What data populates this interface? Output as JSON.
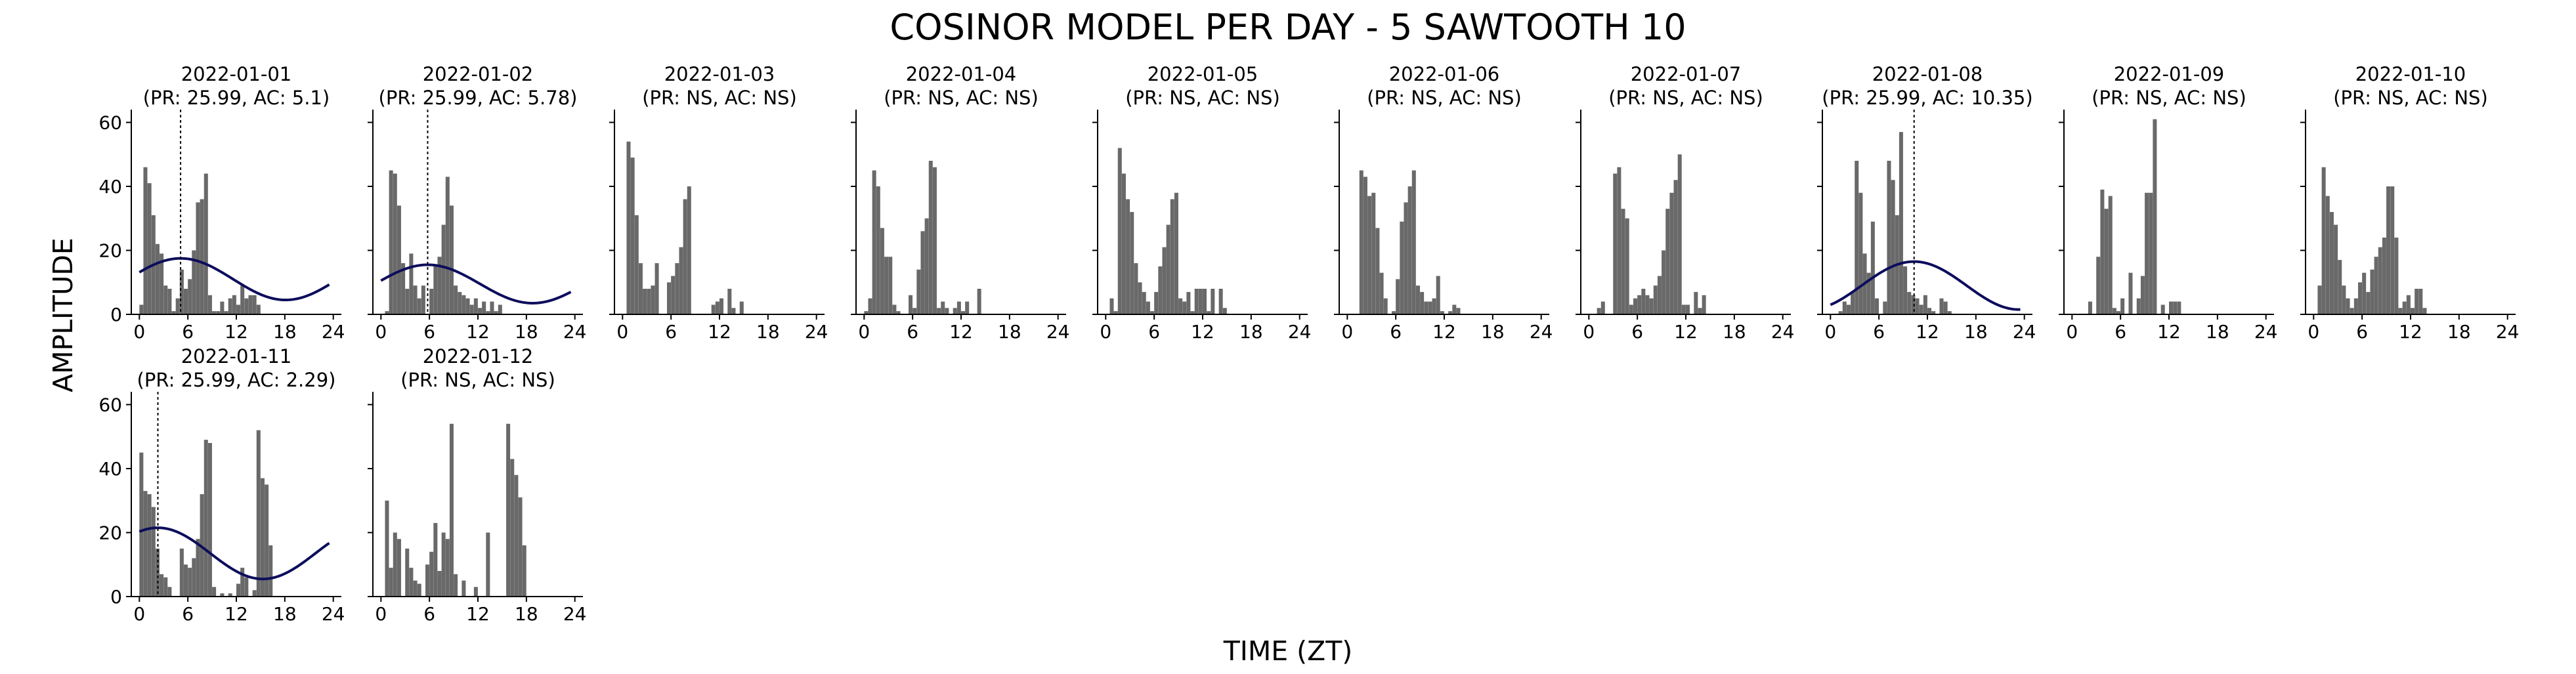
{
  "figure": {
    "title": "COSINOR MODEL PER DAY - 5 SAWTOOTH 10",
    "xlabel": "TIME (ZT)",
    "ylabel": "AMPLITUDE"
  },
  "style": {
    "bar_color": "#696969",
    "fit_color": "#0d0d5c",
    "acrophase_line_color": "#000000",
    "axis_color": "#000000"
  },
  "chart_data": {
    "type": "bar",
    "note_layout": "small multiples, 10 per row",
    "x_bin_hours": 0.5,
    "xlim": [
      -1,
      25
    ],
    "ylim": [
      0,
      64
    ],
    "xticks": [
      0,
      6,
      12,
      18,
      24
    ],
    "yticks": [
      0,
      20,
      40,
      60
    ],
    "grid": false,
    "days": [
      {
        "date": "2022-01-01",
        "subtitle": "(PR: 25.99, AC: 5.1)",
        "values": [
          3,
          46,
          41,
          31,
          22,
          19,
          9,
          8,
          1,
          5,
          14,
          8,
          11,
          20,
          35,
          36,
          44,
          6,
          1,
          1,
          4,
          1,
          5,
          6,
          3,
          9,
          5,
          6,
          6,
          3
        ],
        "fit": {
          "mesor": 11,
          "amplitude": 6.5,
          "acrophase": 5.1,
          "period": 25.99
        }
      },
      {
        "date": "2022-01-02",
        "subtitle": "(PR: 25.99, AC: 5.78)",
        "values": [
          0,
          1,
          45,
          44,
          34,
          16,
          8,
          19,
          9,
          5,
          9,
          0,
          8,
          15,
          18,
          28,
          43,
          34,
          9,
          7,
          6,
          5,
          3,
          5,
          2,
          4,
          1,
          4,
          1,
          3
        ],
        "fit": {
          "mesor": 9.5,
          "amplitude": 6,
          "acrophase": 5.78,
          "period": 25.99
        }
      },
      {
        "date": "2022-01-03",
        "subtitle": "(PR: NS, AC: NS)",
        "values": [
          0,
          54,
          49,
          31,
          16,
          8,
          8,
          9,
          16,
          0,
          0,
          10,
          12,
          16,
          21,
          36,
          40,
          0,
          0,
          0,
          0,
          0,
          3,
          4,
          5,
          0,
          8,
          2,
          0,
          4
        ],
        "fit": null
      },
      {
        "date": "2022-01-04",
        "subtitle": "(PR: NS, AC: NS)",
        "values": [
          1,
          5,
          45,
          40,
          27,
          18,
          18,
          3,
          1,
          0,
          0,
          6,
          2,
          14,
          26,
          30,
          48,
          46,
          2,
          4,
          2,
          0,
          2,
          4,
          1,
          4,
          0,
          0,
          8,
          0
        ],
        "fit": null
      },
      {
        "date": "2022-01-05",
        "subtitle": "(PR: NS, AC: NS)",
        "values": [
          0,
          5,
          1,
          52,
          44,
          36,
          32,
          16,
          10,
          7,
          4,
          1,
          7,
          15,
          21,
          28,
          36,
          38,
          5,
          4,
          7,
          1,
          8,
          8,
          8,
          1,
          8,
          0,
          8,
          2
        ],
        "fit": null
      },
      {
        "date": "2022-01-06",
        "subtitle": "(PR: NS, AC: NS)",
        "values": [
          0,
          0,
          0,
          45,
          43,
          37,
          38,
          27,
          13,
          5,
          0,
          1,
          11,
          29,
          35,
          40,
          45,
          9,
          7,
          4,
          4,
          5,
          12,
          1,
          0,
          1,
          3,
          2,
          0,
          0
        ],
        "fit": null
      },
      {
        "date": "2022-01-07",
        "subtitle": "(PR: NS, AC: NS)",
        "values": [
          0,
          0,
          2,
          4,
          0,
          0,
          44,
          46,
          33,
          30,
          3,
          5,
          6,
          8,
          6,
          5,
          9,
          12,
          20,
          33,
          38,
          42,
          50,
          3,
          3,
          0,
          7,
          2,
          6,
          0
        ],
        "fit": null
      },
      {
        "date": "2022-01-08",
        "subtitle": "(PR: 25.99, AC: 10.35)",
        "values": [
          0,
          0,
          1,
          4,
          3,
          7,
          48,
          38,
          19,
          13,
          29,
          5,
          0,
          4,
          48,
          42,
          31,
          57,
          15,
          7,
          6,
          5,
          3,
          6,
          2,
          1,
          0,
          5,
          4,
          1
        ],
        "fit": {
          "mesor": 9,
          "amplitude": 7.5,
          "acrophase": 10.35,
          "period": 25.99
        }
      },
      {
        "date": "2022-01-09",
        "subtitle": "(PR: NS, AC: NS)",
        "values": [
          0,
          0,
          0,
          0,
          4,
          0,
          18,
          39,
          33,
          37,
          2,
          1,
          5,
          0,
          13,
          0,
          5,
          12,
          38,
          38,
          61,
          0,
          3,
          0,
          4,
          4,
          4,
          0,
          0,
          0
        ],
        "fit": null
      },
      {
        "date": "2022-01-10",
        "subtitle": "(PR: NS, AC: NS)",
        "values": [
          0,
          9,
          46,
          37,
          32,
          28,
          17,
          9,
          5,
          2,
          5,
          10,
          13,
          7,
          14,
          18,
          21,
          24,
          40,
          40,
          24,
          2,
          4,
          6,
          2,
          8,
          8,
          2,
          0,
          0
        ],
        "fit": null
      },
      {
        "date": "2022-01-11",
        "subtitle": "(PR: 25.99, AC: 2.29)",
        "values": [
          45,
          33,
          32,
          28,
          15,
          7,
          6,
          3,
          0,
          0,
          15,
          10,
          9,
          12,
          18,
          32,
          49,
          48,
          3,
          0,
          1,
          0,
          1,
          0,
          4,
          9,
          6,
          0,
          2,
          52,
          37,
          35,
          16
        ],
        "fit": {
          "mesor": 13.5,
          "amplitude": 8,
          "acrophase": 2.29,
          "period": 25.99
        }
      },
      {
        "date": "2022-01-12",
        "subtitle": "(PR: NS, AC: NS)",
        "values": [
          0,
          30,
          9,
          20,
          18,
          0,
          15,
          9,
          5,
          4,
          0,
          10,
          14,
          23,
          8,
          20,
          18,
          54,
          7,
          0,
          5,
          0,
          0,
          3,
          0,
          0,
          20,
          0,
          0,
          0,
          0,
          54,
          43,
          38,
          31,
          16
        ],
        "fit": null
      }
    ]
  }
}
